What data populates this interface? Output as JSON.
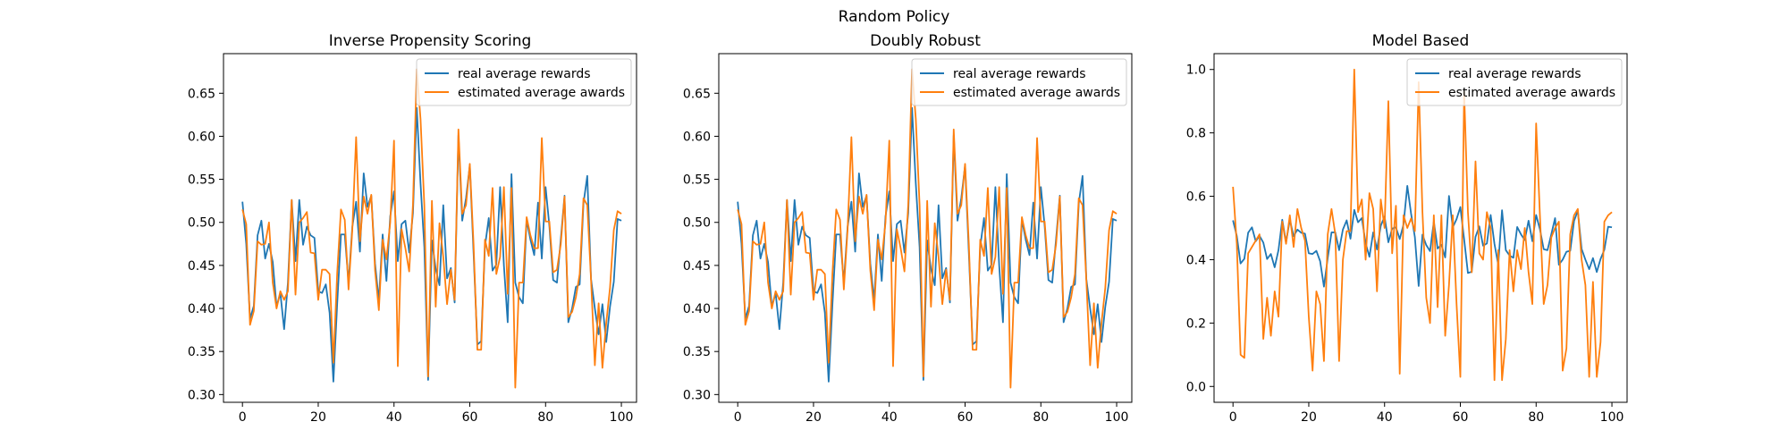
{
  "figure": {
    "suptitle": "Random Policy"
  },
  "chart_data": [
    {
      "type": "line",
      "title": "Inverse Propensity Scoring",
      "xlabel": "",
      "ylabel": "",
      "xlim": [
        -5,
        104
      ],
      "ylim": [
        0.291,
        0.696
      ],
      "xticks": [
        0,
        20,
        40,
        60,
        80,
        100
      ],
      "yticks": [
        0.3,
        0.35,
        0.4,
        0.45,
        0.5,
        0.55,
        0.6,
        0.65
      ],
      "ytick_labels": [
        "0.30",
        "0.35",
        "0.40",
        "0.45",
        "0.50",
        "0.55",
        "0.60",
        "0.65"
      ],
      "legend_position": "upper right",
      "series": [
        {
          "name": "real average rewards",
          "color": "#1f77b4",
          "values": [
            0.524,
            0.475,
            0.388,
            0.403,
            0.485,
            0.502,
            0.458,
            0.475,
            0.454,
            0.402,
            0.418,
            0.376,
            0.43,
            0.526,
            0.455,
            0.526,
            0.474,
            0.495,
            0.485,
            0.482,
            0.42,
            0.418,
            0.428,
            0.395,
            0.315,
            0.405,
            0.486,
            0.486,
            0.43,
            0.495,
            0.524,
            0.466,
            0.557,
            0.518,
            0.531,
            0.452,
            0.409,
            0.486,
            0.432,
            0.507,
            0.536,
            0.455,
            0.498,
            0.502,
            0.465,
            0.511,
            0.633,
            0.545,
            0.471,
            0.317,
            0.479,
            0.446,
            0.427,
            0.52,
            0.435,
            0.447,
            0.407,
            0.601,
            0.502,
            0.528,
            0.566,
            0.464,
            0.358,
            0.362,
            0.472,
            0.505,
            0.444,
            0.451,
            0.541,
            0.45,
            0.384,
            0.556,
            0.43,
            0.413,
            0.406,
            0.503,
            0.48,
            0.462,
            0.523,
            0.458,
            0.541,
            0.496,
            0.433,
            0.43,
            0.48,
            0.531,
            0.384,
            0.4,
            0.425,
            0.428,
            0.522,
            0.554,
            0.434,
            0.4,
            0.37,
            0.405,
            0.361,
            0.402,
            0.431,
            0.504,
            0.502
          ]
        },
        {
          "name": "estimated average awards",
          "color": "#ff7f0e",
          "values": [
            0.515,
            0.498,
            0.381,
            0.397,
            0.478,
            0.474,
            0.475,
            0.5,
            0.43,
            0.4,
            0.42,
            0.41,
            0.42,
            0.526,
            0.416,
            0.5,
            0.505,
            0.512,
            0.465,
            0.464,
            0.41,
            0.445,
            0.445,
            0.44,
            0.337,
            0.441,
            0.515,
            0.503,
            0.422,
            0.492,
            0.599,
            0.478,
            0.53,
            0.51,
            0.532,
            0.444,
            0.398,
            0.48,
            0.457,
            0.5,
            0.595,
            0.333,
            0.492,
            0.47,
            0.443,
            0.521,
            0.678,
            0.62,
            0.52,
            0.321,
            0.525,
            0.402,
            0.499,
            0.46,
            0.405,
            0.445,
            0.41,
            0.608,
            0.51,
            0.52,
            0.568,
            0.474,
            0.352,
            0.352,
            0.48,
            0.461,
            0.54,
            0.44,
            0.46,
            0.541,
            0.417,
            0.54,
            0.308,
            0.43,
            0.43,
            0.506,
            0.485,
            0.47,
            0.47,
            0.598,
            0.501,
            0.501,
            0.442,
            0.445,
            0.474,
            0.53,
            0.39,
            0.396,
            0.413,
            0.44,
            0.528,
            0.52,
            0.433,
            0.334,
            0.406,
            0.331,
            0.383,
            0.424,
            0.491,
            0.513,
            0.51
          ]
        }
      ]
    },
    {
      "type": "line",
      "title": "Doubly Robust",
      "xlabel": "",
      "ylabel": "",
      "xlim": [
        -5,
        104
      ],
      "ylim": [
        0.291,
        0.696
      ],
      "xticks": [
        0,
        20,
        40,
        60,
        80,
        100
      ],
      "yticks": [
        0.3,
        0.35,
        0.4,
        0.45,
        0.5,
        0.55,
        0.6,
        0.65
      ],
      "ytick_labels": [
        "0.30",
        "0.35",
        "0.40",
        "0.45",
        "0.50",
        "0.55",
        "0.60",
        "0.65"
      ],
      "legend_position": "upper right",
      "series": [
        {
          "name": "real average rewards",
          "color": "#1f77b4",
          "values": [
            0.524,
            0.475,
            0.388,
            0.403,
            0.485,
            0.502,
            0.458,
            0.475,
            0.454,
            0.402,
            0.418,
            0.376,
            0.43,
            0.526,
            0.455,
            0.526,
            0.474,
            0.495,
            0.485,
            0.482,
            0.42,
            0.418,
            0.428,
            0.395,
            0.315,
            0.405,
            0.486,
            0.486,
            0.43,
            0.495,
            0.524,
            0.466,
            0.557,
            0.518,
            0.531,
            0.452,
            0.409,
            0.486,
            0.432,
            0.507,
            0.536,
            0.455,
            0.498,
            0.502,
            0.465,
            0.511,
            0.633,
            0.545,
            0.471,
            0.317,
            0.479,
            0.446,
            0.427,
            0.52,
            0.435,
            0.447,
            0.407,
            0.601,
            0.502,
            0.528,
            0.566,
            0.464,
            0.358,
            0.362,
            0.472,
            0.505,
            0.444,
            0.451,
            0.541,
            0.45,
            0.384,
            0.556,
            0.43,
            0.413,
            0.406,
            0.503,
            0.48,
            0.462,
            0.523,
            0.458,
            0.541,
            0.496,
            0.433,
            0.43,
            0.48,
            0.531,
            0.384,
            0.4,
            0.425,
            0.428,
            0.522,
            0.554,
            0.434,
            0.4,
            0.37,
            0.405,
            0.361,
            0.402,
            0.431,
            0.504,
            0.502
          ]
        },
        {
          "name": "estimated average awards",
          "color": "#ff7f0e",
          "values": [
            0.515,
            0.498,
            0.381,
            0.397,
            0.478,
            0.474,
            0.475,
            0.5,
            0.43,
            0.4,
            0.42,
            0.41,
            0.42,
            0.526,
            0.416,
            0.5,
            0.505,
            0.512,
            0.465,
            0.464,
            0.41,
            0.445,
            0.445,
            0.44,
            0.337,
            0.441,
            0.515,
            0.503,
            0.422,
            0.492,
            0.599,
            0.478,
            0.53,
            0.51,
            0.532,
            0.444,
            0.398,
            0.48,
            0.457,
            0.5,
            0.595,
            0.333,
            0.492,
            0.47,
            0.443,
            0.521,
            0.678,
            0.62,
            0.52,
            0.321,
            0.525,
            0.402,
            0.499,
            0.46,
            0.405,
            0.445,
            0.41,
            0.608,
            0.51,
            0.52,
            0.568,
            0.474,
            0.352,
            0.352,
            0.48,
            0.461,
            0.54,
            0.44,
            0.46,
            0.541,
            0.417,
            0.54,
            0.308,
            0.43,
            0.43,
            0.506,
            0.485,
            0.47,
            0.47,
            0.598,
            0.501,
            0.501,
            0.442,
            0.445,
            0.474,
            0.53,
            0.39,
            0.396,
            0.413,
            0.44,
            0.528,
            0.52,
            0.433,
            0.334,
            0.406,
            0.331,
            0.383,
            0.424,
            0.491,
            0.513,
            0.51
          ]
        }
      ]
    },
    {
      "type": "line",
      "title": "Model Based",
      "xlabel": "",
      "ylabel": "",
      "xlim": [
        -5,
        104
      ],
      "ylim": [
        -0.05,
        1.05
      ],
      "xticks": [
        0,
        20,
        40,
        60,
        80,
        100
      ],
      "yticks": [
        0.0,
        0.2,
        0.4,
        0.6,
        0.8,
        1.0
      ],
      "ytick_labels": [
        "0.0",
        "0.2",
        "0.4",
        "0.6",
        "0.8",
        "1.0"
      ],
      "legend_position": "upper right",
      "series": [
        {
          "name": "real average rewards",
          "color": "#1f77b4",
          "values": [
            0.524,
            0.475,
            0.388,
            0.403,
            0.485,
            0.502,
            0.458,
            0.475,
            0.454,
            0.402,
            0.418,
            0.376,
            0.43,
            0.526,
            0.455,
            0.526,
            0.474,
            0.495,
            0.485,
            0.482,
            0.42,
            0.418,
            0.428,
            0.395,
            0.315,
            0.405,
            0.486,
            0.486,
            0.43,
            0.495,
            0.524,
            0.466,
            0.557,
            0.518,
            0.531,
            0.452,
            0.409,
            0.486,
            0.432,
            0.507,
            0.536,
            0.455,
            0.498,
            0.502,
            0.465,
            0.511,
            0.633,
            0.545,
            0.471,
            0.317,
            0.479,
            0.446,
            0.427,
            0.52,
            0.435,
            0.447,
            0.407,
            0.601,
            0.502,
            0.528,
            0.566,
            0.464,
            0.358,
            0.362,
            0.472,
            0.505,
            0.444,
            0.451,
            0.541,
            0.45,
            0.384,
            0.556,
            0.43,
            0.413,
            0.406,
            0.503,
            0.48,
            0.462,
            0.523,
            0.458,
            0.541,
            0.496,
            0.433,
            0.43,
            0.48,
            0.531,
            0.384,
            0.4,
            0.425,
            0.428,
            0.522,
            0.554,
            0.434,
            0.4,
            0.37,
            0.405,
            0.361,
            0.402,
            0.431,
            0.504,
            0.502
          ]
        },
        {
          "name": "estimated average awards",
          "color": "#ff7f0e",
          "values": [
            0.63,
            0.45,
            0.1,
            0.09,
            0.42,
            0.44,
            0.46,
            0.48,
            0.15,
            0.28,
            0.16,
            0.3,
            0.22,
            0.52,
            0.45,
            0.54,
            0.44,
            0.56,
            0.5,
            0.46,
            0.22,
            0.05,
            0.3,
            0.26,
            0.08,
            0.48,
            0.56,
            0.48,
            0.08,
            0.4,
            0.49,
            0.49,
            1.0,
            0.55,
            0.59,
            0.4,
            0.61,
            0.56,
            0.3,
            0.59,
            0.5,
            0.9,
            0.42,
            0.57,
            0.04,
            0.54,
            0.5,
            0.53,
            0.49,
            0.96,
            0.55,
            0.28,
            0.2,
            0.54,
            0.25,
            0.54,
            0.16,
            0.32,
            0.54,
            0.26,
            0.03,
            0.93,
            0.55,
            0.36,
            0.71,
            0.42,
            0.4,
            0.55,
            0.5,
            0.02,
            0.43,
            0.02,
            0.15,
            0.43,
            0.3,
            0.43,
            0.37,
            0.5,
            0.36,
            0.26,
            0.83,
            0.54,
            0.26,
            0.32,
            0.47,
            0.5,
            0.52,
            0.05,
            0.12,
            0.48,
            0.54,
            0.56,
            0.4,
            0.32,
            0.03,
            0.33,
            0.03,
            0.14,
            0.52,
            0.54,
            0.55
          ]
        }
      ]
    }
  ]
}
